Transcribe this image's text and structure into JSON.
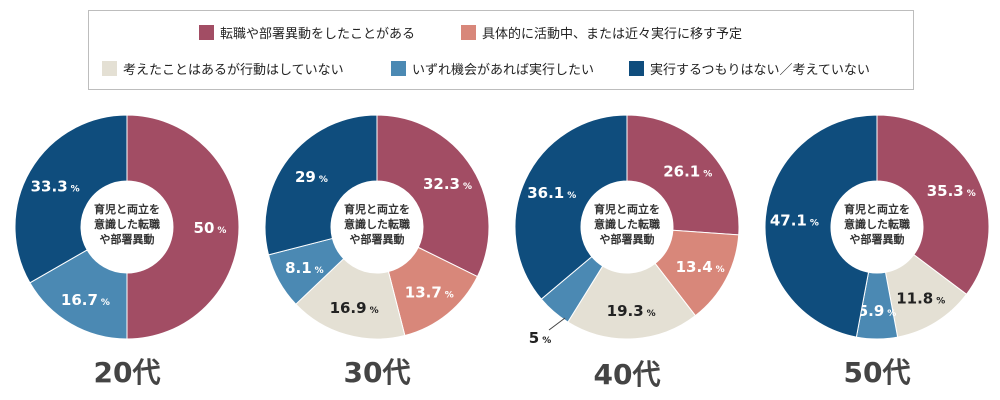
{
  "legend": {
    "items": [
      {
        "label": "転職や部署異動をしたことがある",
        "color": "#a24d64"
      },
      {
        "label": "具体的に活動中、または近々実行に移す予定",
        "color": "#d8877a"
      },
      {
        "label": "考えたことはあるが行動はしていない",
        "color": "#e4e0d4"
      },
      {
        "label": "いずれ機会があれば実行したい",
        "color": "#4b89b3"
      },
      {
        "label": "実行するつもりはない／考えていない",
        "color": "#0f4d7d"
      }
    ]
  },
  "center_label": [
    "育児と両立を",
    "意識した転職",
    "や部署異動"
  ],
  "percent_unit": "%",
  "chart_data": [
    {
      "type": "pie",
      "title": "20代",
      "categories": [
        "転職や部署異動をしたことがある",
        "具体的に活動中、または近々実行に移す予定",
        "考えたことはあるが行動はしていない",
        "いずれ機会があれば実行したい",
        "実行するつもりはない／考えていない"
      ],
      "values": [
        50,
        0,
        0,
        16.7,
        33.3
      ],
      "labels": [
        "50",
        "",
        "",
        "16.7",
        "33.3"
      ]
    },
    {
      "type": "pie",
      "title": "30代",
      "categories": [
        "転職や部署異動をしたことがある",
        "具体的に活動中、または近々実行に移す予定",
        "考えたことはあるが行動はしていない",
        "いずれ機会があれば実行したい",
        "実行するつもりはない／考えていない"
      ],
      "values": [
        32.3,
        13.7,
        16.9,
        8.1,
        29
      ],
      "labels": [
        "32.3",
        "13.7",
        "16.9",
        "8.1",
        "29"
      ]
    },
    {
      "type": "pie",
      "title": "40代",
      "categories": [
        "転職や部署異動をしたことがある",
        "具体的に活動中、または近々実行に移す予定",
        "考えたことはあるが行動はしていない",
        "いずれ機会があれば実行したい",
        "実行するつもりはない／考えていない"
      ],
      "values": [
        26.1,
        13.4,
        19.3,
        5,
        36.1
      ],
      "labels": [
        "26.1",
        "13.4",
        "19.3",
        "5",
        "36.1"
      ]
    },
    {
      "type": "pie",
      "title": "50代",
      "categories": [
        "転職や部署異動をしたことがある",
        "具体的に活動中、または近々実行に移す予定",
        "考えたことはあるが行動はしていない",
        "いずれ機会があれば実行したい",
        "実行するつもりはない／考えていない"
      ],
      "values": [
        35.3,
        0,
        11.8,
        5.9,
        47.1
      ],
      "labels": [
        "35.3",
        "",
        "11.8",
        "5.9",
        "47.1"
      ]
    }
  ]
}
